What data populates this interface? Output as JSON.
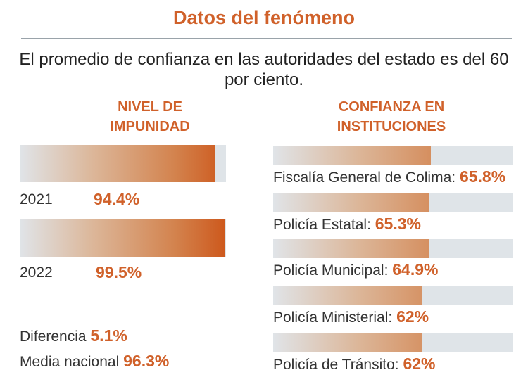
{
  "header": {
    "title": "Datos del fenómeno",
    "subtitle": "El promedio de confianza en las autoridades del estado es del 60 por ciento."
  },
  "colors": {
    "accent": "#d0612a",
    "track": "#dfe4e8"
  },
  "chart_data": [
    {
      "type": "bar",
      "title": "NIVEL DE IMPUNIDAD",
      "categories": [
        "2021",
        "2022"
      ],
      "values": [
        94.4,
        99.5
      ],
      "labels": [
        "94.4%",
        "99.5%"
      ],
      "ylim": [
        0,
        100
      ],
      "notes": {
        "diff_label": "Diferencia",
        "diff_value": "5.1%",
        "national_label": "Media nacional",
        "national_value": "96.3%"
      }
    },
    {
      "type": "bar",
      "title": "CONFIANZA EN INSTITUCIONES",
      "categories": [
        "Fiscalía General de Colima:",
        "Policía Estatal:",
        "Policía Municipal:",
        "Policía Ministerial:",
        "Policía de Tránsito:"
      ],
      "values": [
        65.8,
        65.3,
        64.9,
        62,
        62
      ],
      "labels": [
        "65.8%",
        "65.3%",
        "64.9%",
        "62%",
        "62%"
      ],
      "ylim": [
        0,
        100
      ]
    }
  ]
}
